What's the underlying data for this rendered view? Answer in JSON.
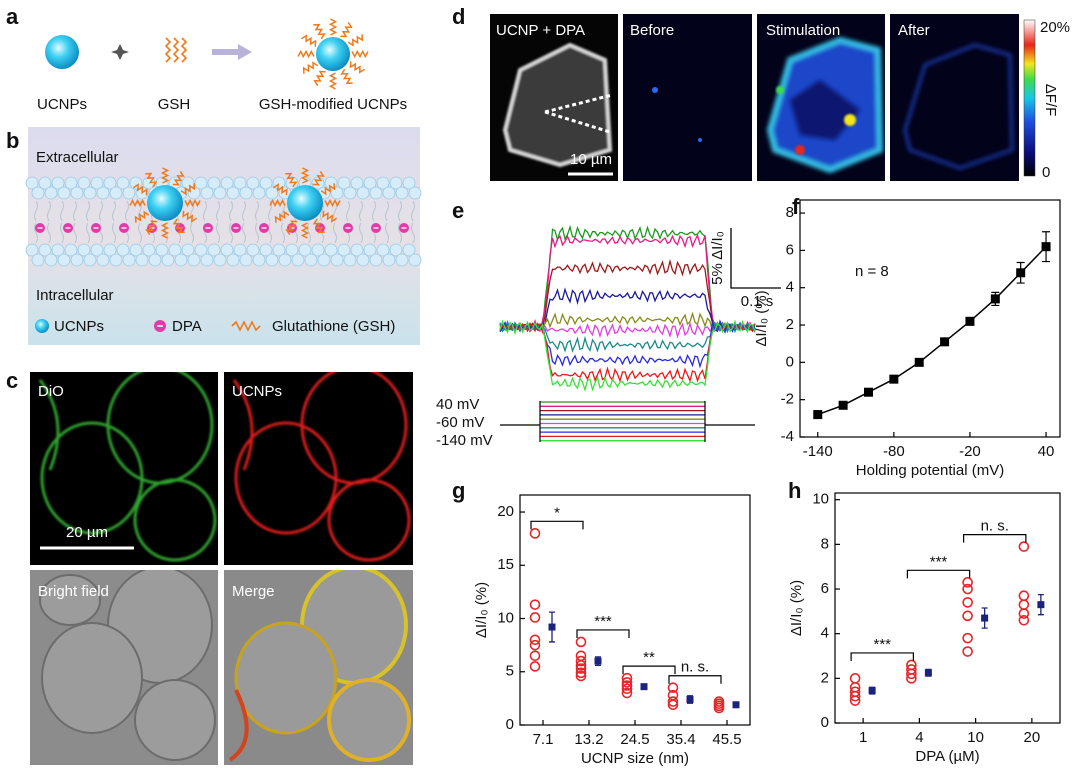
{
  "panels": {
    "a": {
      "label": "a",
      "items": [
        "UCNPs",
        "GSH",
        "GSH-modified UCNPs"
      ]
    },
    "b": {
      "label": "b",
      "extracellular": "Extracellular",
      "intracellular": "Intracellular",
      "legend": [
        "UCNPs",
        "DPA",
        "Glutathione (GSH)"
      ]
    },
    "c": {
      "label": "c",
      "images": [
        "DiO",
        "UCNPs",
        "Bright field",
        "Merge"
      ],
      "scale_bar": "20 µm"
    },
    "d": {
      "label": "d",
      "images": [
        "UCNP + DPA",
        "Before",
        "Stimulation",
        "After"
      ],
      "scale_bar": "10 µm",
      "colorbar": {
        "max": "20%",
        "title": "ΔF/F",
        "min": 0
      }
    },
    "e": {
      "label": "e",
      "scale_y": "5%",
      "scale_y_unit": "ΔI/I₀",
      "scale_x": "0.1 s",
      "voltages": [
        "40 mV",
        "-60 mV",
        "-140 mV"
      ],
      "traces": [
        {
          "color": "#1a9e1a",
          "level": 7.8
        },
        {
          "color": "#e8198b",
          "level": 7.2
        },
        {
          "color": "#a01818",
          "level": 4.9
        },
        {
          "color": "#1a1a9e",
          "level": 2.6
        },
        {
          "color": "#8a8a1a",
          "level": 0.6
        },
        {
          "color": "#e040e0",
          "level": -0.25
        },
        {
          "color": "#1a8a8a",
          "level": -1.5
        },
        {
          "color": "#2a2ae8",
          "level": -2.75
        },
        {
          "color": "#e81a1a",
          "level": -4
        },
        {
          "color": "#3ae03a",
          "level": -4.7
        }
      ]
    }
  },
  "chart_data": [
    {
      "type": "line",
      "panel_label": "f",
      "annotation": "n = 8",
      "xlabel": "Holding potential (mV)",
      "ylabel": "ΔI/I₀ (%)",
      "x": [
        -140,
        -120,
        -100,
        -80,
        -60,
        -40,
        -20,
        0,
        20,
        40
      ],
      "values": [
        -2.8,
        -2.3,
        -1.6,
        -0.9,
        0.0,
        1.1,
        2.2,
        3.4,
        4.8,
        6.2
      ],
      "errors": [
        0.2,
        0.15,
        0.1,
        0.1,
        0.1,
        0.1,
        0.2,
        0.35,
        0.55,
        0.8
      ],
      "color": "#000000",
      "xlim": [
        -154,
        51
      ],
      "xticks": [
        -140,
        -80,
        -20,
        40
      ],
      "ylim": [
        -4,
        8.7
      ],
      "yticks": [
        -4,
        -2,
        0,
        2,
        4,
        6,
        8
      ]
    },
    {
      "type": "dot",
      "panel_label": "g",
      "xlabel": "UCNP size (nm)",
      "ylabel": "ΔI/I₀ (%)",
      "categories": [
        "7.1",
        "13.2",
        "24.5",
        "35.4",
        "45.5"
      ],
      "points": [
        [
          18,
          11.3,
          10.1,
          8,
          7.5,
          6.5,
          5.5
        ],
        [
          7.8,
          6.5,
          6.0,
          5.6,
          5.3,
          4.9,
          4.6
        ],
        [
          4.4,
          4.0,
          3.7,
          3.4,
          3.0
        ],
        [
          3.5,
          2.8,
          2.2,
          1.9
        ],
        [
          2.2,
          2.0,
          1.8,
          1.6
        ]
      ],
      "means": [
        9.2,
        6.0,
        3.6,
        2.4,
        1.9
      ],
      "errors": [
        1.4,
        0.4,
        0.2,
        0.35,
        0.15
      ],
      "point_color": "#e8262a",
      "mean_color": "#1a237e",
      "brackets": [
        {
          "from": 0,
          "to": 1,
          "label": "*"
        },
        {
          "from": 1,
          "to": 2,
          "label": "***"
        },
        {
          "from": 2,
          "to": 3,
          "label": "**"
        },
        {
          "from": 3,
          "to": 4,
          "label": "n. s."
        }
      ],
      "ylim": [
        0,
        21.6
      ],
      "yticks": [
        0,
        5,
        10,
        15,
        20
      ]
    },
    {
      "type": "dot",
      "panel_label": "h",
      "xlabel": "DPA (µM)",
      "ylabel": "ΔI/I₀ (%)",
      "categories": [
        "1",
        "4",
        "10",
        "20"
      ],
      "points": [
        [
          2.0,
          1.6,
          1.4,
          1.2,
          1.0
        ],
        [
          2.6,
          2.4,
          2.2,
          2.0
        ],
        [
          6.3,
          6.0,
          5.4,
          4.8,
          3.8,
          3.2
        ],
        [
          7.9,
          5.7,
          5.3,
          4.9,
          4.6
        ]
      ],
      "means": [
        1.45,
        2.25,
        4.7,
        5.3
      ],
      "errors": [
        0.15,
        0.15,
        0.45,
        0.45
      ],
      "point_color": "#e8262a",
      "mean_color": "#1a237e",
      "brackets": [
        {
          "from": 0,
          "to": 1,
          "label": "***"
        },
        {
          "from": 1,
          "to": 2,
          "label": "***"
        },
        {
          "from": 2,
          "to": 3,
          "label": "n. s."
        }
      ],
      "ylim": [
        0,
        10.3
      ],
      "yticks": [
        0,
        2,
        4,
        6,
        8,
        10
      ]
    }
  ]
}
